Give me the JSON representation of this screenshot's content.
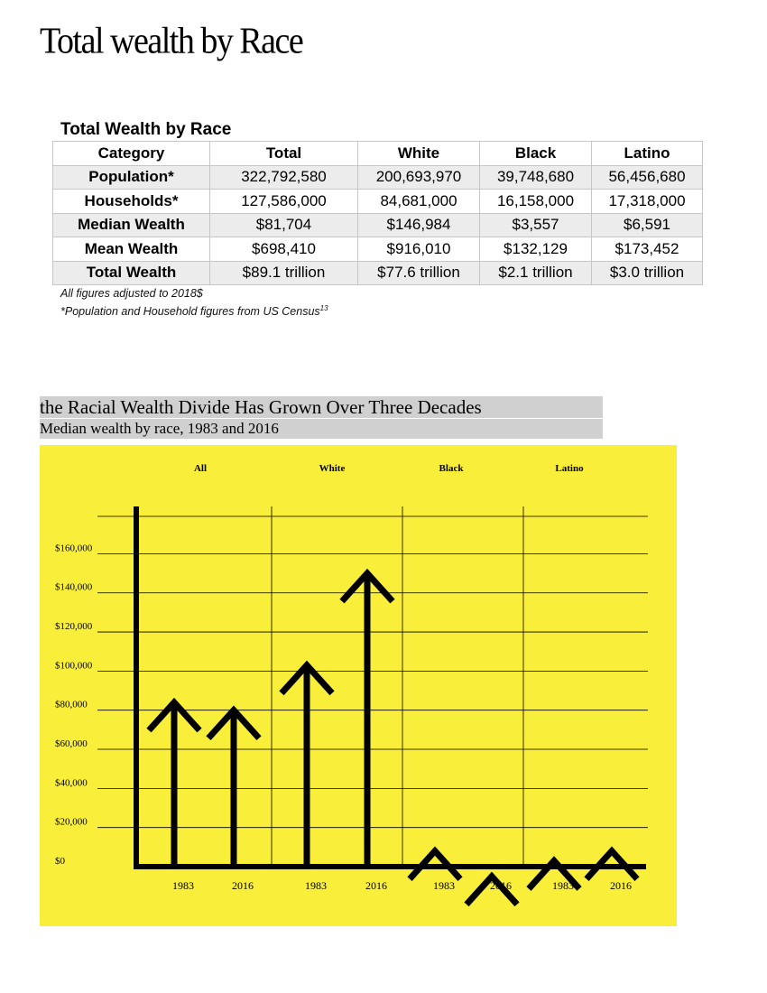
{
  "page": {
    "title": "Total wealth by Race"
  },
  "table": {
    "title": "Total Wealth by Race",
    "columns": [
      "Category",
      "Total",
      "White",
      "Black",
      "Latino"
    ],
    "rows": [
      [
        "Population*",
        "322,792,580",
        "200,693,970",
        "39,748,680",
        "56,456,680"
      ],
      [
        "Households*",
        "127,586,000",
        "84,681,000",
        "16,158,000",
        "17,318,000"
      ],
      [
        "Median Wealth",
        "$81,704",
        "$146,984",
        "$3,557",
        "$6,591"
      ],
      [
        "Mean Wealth",
        "$698,410",
        "$916,010",
        "$132,129",
        "$173,452"
      ],
      [
        "Total Wealth",
        "$89.1 trillion",
        "$77.6 trillion",
        "$2.1 trillion",
        "$3.0 trillion"
      ]
    ],
    "notes": {
      "line1": "All figures adjusted to 2018$",
      "line2": "*Population and Household figures from US Census",
      "line2_sup": "13"
    }
  },
  "chart_data": {
    "type": "bar",
    "title": "the Racial Wealth Divide Has Grown Over Three Decades",
    "subtitle": "Median wealth by race, 1983 and 2016",
    "groups": [
      "All",
      "White",
      "Black",
      "Latino"
    ],
    "categories": [
      "1983",
      "2016",
      "1983",
      "2016",
      "1983",
      "2016",
      "1983",
      "2016"
    ],
    "values": [
      84000,
      80000,
      103000,
      150000,
      8000,
      -5000,
      3000,
      8000
    ],
    "y_ticks": [
      {
        "value": 0,
        "label": "$0"
      },
      {
        "value": 20000,
        "label": "$20,000"
      },
      {
        "value": 40000,
        "label": "$40,000"
      },
      {
        "value": 60000,
        "label": "$60,000"
      },
      {
        "value": 80000,
        "label": "$80,000"
      },
      {
        "value": 100000,
        "label": "$100,000"
      },
      {
        "value": 120000,
        "label": "$120,000"
      },
      {
        "value": 140000,
        "label": "$140,000"
      },
      {
        "value": 160000,
        "label": "$160,000"
      }
    ],
    "ylim": [
      -5000,
      180000
    ],
    "grid": true,
    "mark_style": "arrow",
    "colors": {
      "background": "#f9ee3a",
      "mark": "#000000",
      "title_band": "#d0d0d0"
    }
  }
}
